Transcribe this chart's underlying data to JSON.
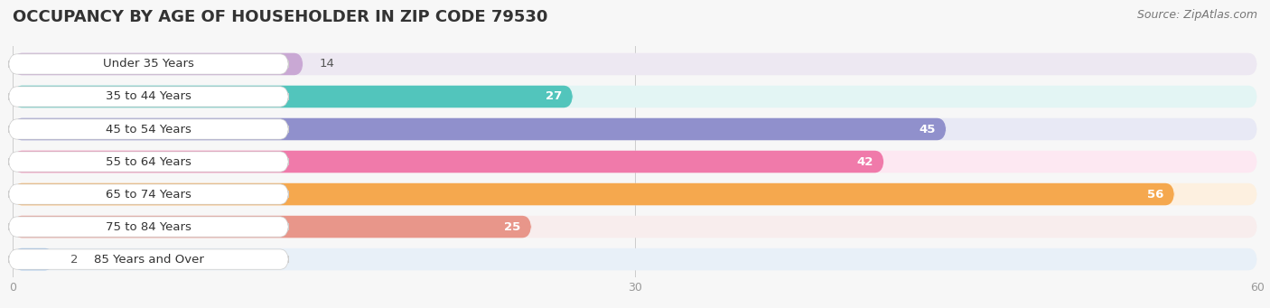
{
  "title": "OCCUPANCY BY AGE OF HOUSEHOLDER IN ZIP CODE 79530",
  "source": "Source: ZipAtlas.com",
  "categories": [
    "Under 35 Years",
    "35 to 44 Years",
    "45 to 54 Years",
    "55 to 64 Years",
    "65 to 74 Years",
    "75 to 84 Years",
    "85 Years and Over"
  ],
  "values": [
    14,
    27,
    45,
    42,
    56,
    25,
    2
  ],
  "bar_colors": [
    "#c9a8d4",
    "#52c5bc",
    "#9090cc",
    "#f07aaa",
    "#f5a84e",
    "#e8968a",
    "#99bde8"
  ],
  "bar_bg_colors": [
    "#ede8f2",
    "#e3f5f4",
    "#e8e9f5",
    "#fde8f2",
    "#fdf0e0",
    "#f8eded",
    "#e8f0f8"
  ],
  "xlim": [
    0,
    60
  ],
  "xticks": [
    0,
    30,
    60
  ],
  "background_color": "#f7f7f7",
  "title_fontsize": 13,
  "source_fontsize": 9,
  "label_fontsize": 9.5,
  "value_fontsize": 9.5,
  "bar_height": 0.68,
  "title_color": "#333333",
  "source_color": "#777777",
  "label_color": "#333333",
  "value_color_inside": "#ffffff",
  "value_color_outside": "#555555",
  "inside_threshold": 20
}
